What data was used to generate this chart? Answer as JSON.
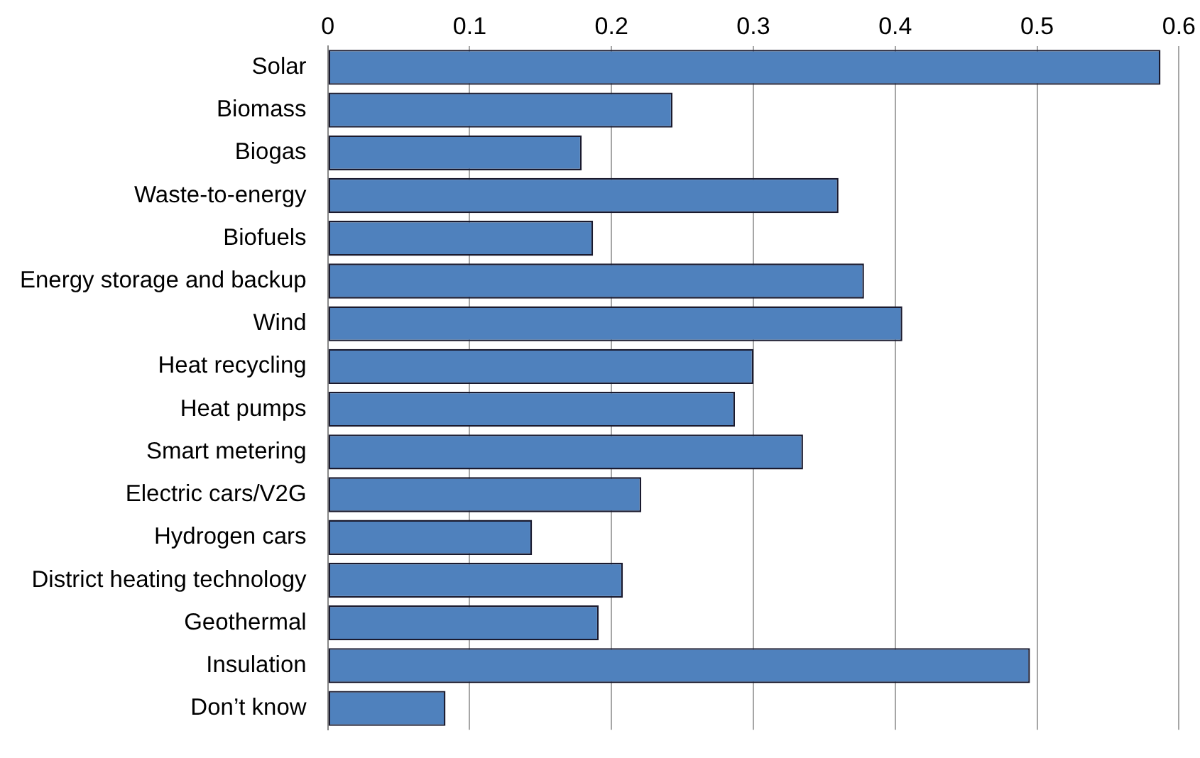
{
  "chart_data": {
    "type": "bar",
    "orientation": "horizontal",
    "categories": [
      "Solar",
      "Biomass",
      "Biogas",
      "Waste-to-energy",
      "Biofuels",
      "Energy storage and backup",
      "Wind",
      "Heat recycling",
      "Heat pumps",
      "Smart metering",
      "Electric cars/V2G",
      "Hydrogen cars",
      "District heating technology",
      "Geothermal",
      "Insulation",
      "Don’t know"
    ],
    "values": [
      0.587,
      0.243,
      0.179,
      0.36,
      0.187,
      0.378,
      0.405,
      0.3,
      0.287,
      0.335,
      0.221,
      0.144,
      0.208,
      0.191,
      0.495,
      0.083
    ],
    "color": "#4f81bd",
    "xlim": [
      0,
      0.6
    ],
    "xticks": [
      0,
      0.1,
      0.2,
      0.3,
      0.4,
      0.5,
      0.6
    ],
    "grid": "x",
    "legend": false
  }
}
